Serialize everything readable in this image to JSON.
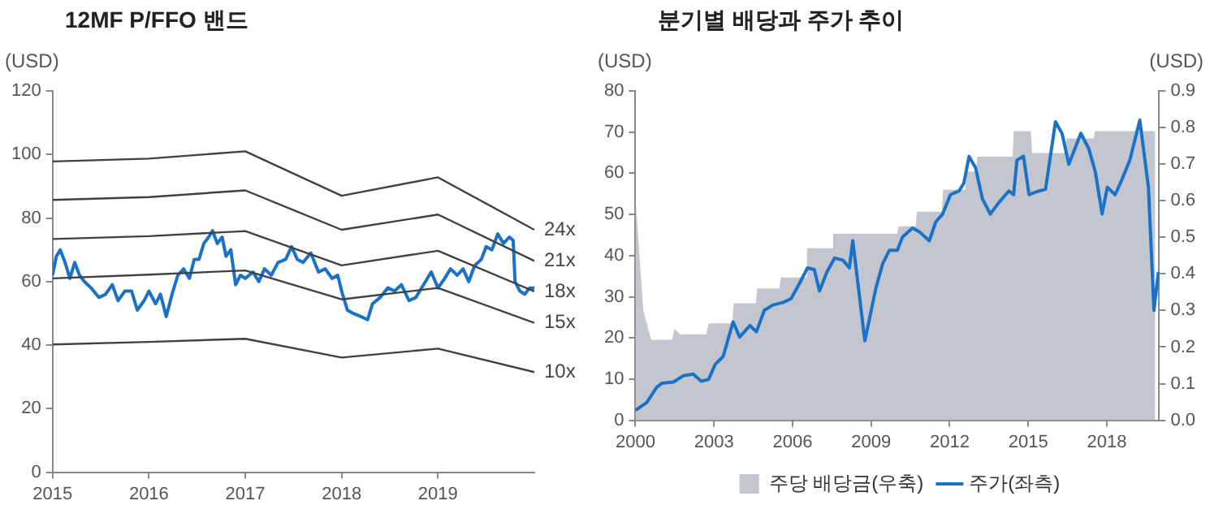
{
  "chart_data": [
    {
      "type": "line",
      "title": "12MF P/FFO 밴드",
      "ylabel": "(USD)",
      "xlim": [
        2015,
        2020
      ],
      "xticks": [
        2015,
        2016,
        2017,
        2018,
        2019
      ],
      "ylim": [
        0,
        120
      ],
      "yticks": [
        0,
        20,
        40,
        60,
        80,
        100,
        120
      ],
      "grid": false,
      "legend": false,
      "marker": "none",
      "series": [
        {
          "name": "24x",
          "color": "#404040",
          "x": [
            2015,
            2016,
            2017,
            2018,
            2019,
            2020
          ],
          "values": [
            97.8,
            98.7,
            101,
            87,
            92.8,
            76.3
          ]
        },
        {
          "name": "21x",
          "color": "#404040",
          "x": [
            2015,
            2016,
            2017,
            2018,
            2019,
            2020
          ],
          "values": [
            85.7,
            86.6,
            88.7,
            76.3,
            81.1,
            66.5
          ]
        },
        {
          "name": "18x",
          "color": "#404040",
          "x": [
            2015,
            2016,
            2017,
            2018,
            2019,
            2020
          ],
          "values": [
            73.4,
            74.3,
            75.9,
            65.1,
            69.7,
            56.9
          ]
        },
        {
          "name": "15x",
          "color": "#404040",
          "x": [
            2015,
            2016,
            2017,
            2018,
            2019,
            2020
          ],
          "values": [
            61,
            62.2,
            63.5,
            54.4,
            58,
            47
          ]
        },
        {
          "name": "10x",
          "color": "#404040",
          "x": [
            2015,
            2016,
            2017,
            2018,
            2019,
            2020
          ],
          "values": [
            40.2,
            41,
            42,
            36.1,
            38.9,
            31.5
          ]
        },
        {
          "color": "#1a72c8",
          "x": [
            2015.0,
            2015.04,
            2015.08,
            2015.13,
            2015.18,
            2015.23,
            2015.28,
            2015.33,
            2015.4,
            2015.48,
            2015.55,
            2015.62,
            2015.68,
            2015.75,
            2015.82,
            2015.88,
            2015.95,
            2016.0,
            2016.07,
            2016.12,
            2016.18,
            2016.24,
            2016.3,
            2016.36,
            2016.42,
            2016.47,
            2016.52,
            2016.57,
            2016.62,
            2016.66,
            2016.71,
            2016.76,
            2016.8,
            2016.85,
            2016.9,
            2016.95,
            2017.0,
            2017.08,
            2017.14,
            2017.2,
            2017.27,
            2017.34,
            2017.42,
            2017.48,
            2017.54,
            2017.6,
            2017.68,
            2017.76,
            2017.83,
            2017.9,
            2017.96,
            2018.0,
            2018.06,
            2018.12,
            2018.2,
            2018.27,
            2018.32,
            2018.4,
            2018.48,
            2018.55,
            2018.62,
            2018.7,
            2018.77,
            2018.85,
            2018.93,
            2019.0,
            2019.07,
            2019.13,
            2019.2,
            2019.26,
            2019.32,
            2019.38,
            2019.45,
            2019.5,
            2019.56,
            2019.62,
            2019.68,
            2019.74,
            2019.78,
            2019.8,
            2019.85,
            2019.9,
            2019.95,
            2020.0
          ],
          "values": [
            62,
            68,
            70,
            66,
            61,
            66,
            62,
            60,
            58,
            55,
            56,
            59,
            54,
            57,
            57,
            51,
            54,
            57,
            53,
            56,
            49,
            56,
            62,
            64,
            61,
            67,
            67,
            72,
            74,
            76,
            72,
            74,
            68,
            70,
            59,
            62,
            61,
            63,
            60,
            64,
            62,
            66,
            67,
            71,
            67,
            66,
            69,
            63,
            64,
            61,
            62,
            57,
            51,
            50,
            49,
            48,
            53,
            55,
            58,
            57,
            59,
            54,
            55,
            59,
            63,
            58,
            61,
            64,
            62,
            64,
            60,
            65,
            67,
            71,
            70,
            75,
            72,
            74,
            73,
            60,
            57,
            56,
            58,
            58
          ]
        }
      ]
    },
    {
      "type": "line",
      "title": "분기별 배당과 주가 추이",
      "ylabel": "(USD)",
      "y2label": "(USD)",
      "xlim": [
        2000,
        2020
      ],
      "xticks": [
        2000,
        2003,
        2006,
        2009,
        2012,
        2015,
        2018
      ],
      "ylim": [
        0,
        80
      ],
      "yticks": [
        0,
        10,
        20,
        30,
        40,
        50,
        60,
        70,
        80
      ],
      "y2lim": [
        0,
        0.9
      ],
      "y2ticks": [
        {
          "value": 0,
          "label": "0.0"
        },
        0.1,
        0.2,
        0.3,
        0.4,
        0.5,
        0.6,
        0.7,
        0.8,
        0.9
      ],
      "grid": false,
      "legend": "bottom",
      "marker": "none",
      "series": [
        {
          "type": "area",
          "name": "주당 배당금(우축)",
          "axis": "y2",
          "color": "#c3c5cf",
          "x": [
            2000,
            2000.3,
            2000.6,
            2001.4,
            2001.5,
            2001.7,
            2002.7,
            2002.8,
            2003.7,
            2003.75,
            2004.6,
            2004.65,
            2005.5,
            2005.55,
            2006.5,
            2006.55,
            2007.5,
            2007.55,
            2010.0,
            2010.05,
            2010.7,
            2010.75,
            2011.7,
            2011.75,
            2012.6,
            2012.65,
            2013.0,
            2013.05,
            2014.4,
            2014.45,
            2015.1,
            2015.15,
            2016.4,
            2016.45,
            2017.5,
            2017.55,
            2019.85
          ],
          "values": [
            0.61,
            0.3,
            0.22,
            0.22,
            0.25,
            0.235,
            0.235,
            0.265,
            0.265,
            0.32,
            0.32,
            0.36,
            0.36,
            0.39,
            0.39,
            0.47,
            0.47,
            0.51,
            0.51,
            0.53,
            0.53,
            0.57,
            0.57,
            0.63,
            0.63,
            0.68,
            0.68,
            0.72,
            0.72,
            0.79,
            0.79,
            0.73,
            0.73,
            0.77,
            0.77,
            0.79,
            0.79
          ]
        },
        {
          "type": "line",
          "name": "주가(좌측)",
          "color": "#1a72c8",
          "x": [
            2000.0,
            2000.43,
            2000.81,
            2001.02,
            2001.45,
            2001.83,
            2002.21,
            2002.51,
            2002.79,
            2003.05,
            2003.35,
            2003.73,
            2003.98,
            2004.37,
            2004.62,
            2004.92,
            2005.25,
            2005.63,
            2005.94,
            2006.27,
            2006.57,
            2006.83,
            2007.03,
            2007.31,
            2007.61,
            2007.92,
            2008.17,
            2008.3,
            2008.76,
            2009.19,
            2009.44,
            2009.7,
            2010.0,
            2010.2,
            2010.58,
            2010.84,
            2011.22,
            2011.47,
            2011.73,
            2012.03,
            2012.36,
            2012.54,
            2012.74,
            2012.99,
            2013.25,
            2013.55,
            2013.88,
            2014.26,
            2014.44,
            2014.57,
            2014.82,
            2015.03,
            2015.41,
            2015.66,
            2016.04,
            2016.29,
            2016.55,
            2017.01,
            2017.31,
            2017.56,
            2017.82,
            2018.02,
            2018.32,
            2018.58,
            2018.88,
            2019.26,
            2019.59,
            2019.8,
            2019.97
          ],
          "values": [
            2.4,
            4.3,
            8,
            9,
            9.3,
            10.8,
            11.2,
            9.5,
            9.9,
            13.6,
            15.5,
            23.9,
            20.2,
            23,
            21.5,
            26.7,
            28,
            28.6,
            29.5,
            33.3,
            37,
            36.6,
            31.4,
            36,
            39.4,
            38.9,
            37,
            43.6,
            19.3,
            32.3,
            38,
            41.3,
            41.3,
            44.5,
            46.7,
            45.8,
            43.6,
            48.2,
            50.1,
            54.8,
            55.7,
            57.6,
            64.1,
            61.3,
            53.8,
            50.1,
            52.9,
            55.7,
            54.8,
            63.2,
            64.1,
            54.8,
            55.7,
            56.1,
            72.5,
            69.7,
            62.2,
            69.7,
            66,
            60.4,
            50.1,
            56.6,
            54.8,
            58.5,
            63.2,
            72.9,
            56.6,
            26.7,
            36
          ]
        }
      ]
    }
  ]
}
